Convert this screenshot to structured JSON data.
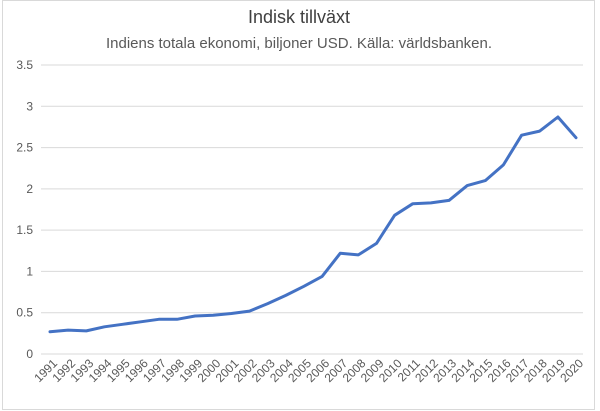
{
  "window": {
    "background_color": "#ffffff",
    "border_color": "#d9d9d9"
  },
  "chart_data": {
    "type": "line",
    "title": "Indisk tillväxt",
    "subtitle": "Indiens totala ekonomi, biljoner USD. Källa: världsbanken.",
    "xlabel": "",
    "ylabel": "",
    "x": [
      1991,
      1992,
      1993,
      1994,
      1995,
      1996,
      1997,
      1998,
      1999,
      2000,
      2001,
      2002,
      2003,
      2004,
      2005,
      2006,
      2007,
      2008,
      2009,
      2010,
      2011,
      2012,
      2013,
      2014,
      2015,
      2016,
      2017,
      2018,
      2019,
      2020
    ],
    "values": [
      0.27,
      0.29,
      0.28,
      0.33,
      0.36,
      0.39,
      0.42,
      0.42,
      0.46,
      0.47,
      0.49,
      0.52,
      0.61,
      0.71,
      0.82,
      0.94,
      1.22,
      1.2,
      1.34,
      1.68,
      1.82,
      1.83,
      1.86,
      2.04,
      2.1,
      2.29,
      2.65,
      2.7,
      2.87,
      2.62
    ],
    "ylim": [
      0,
      3.5
    ],
    "y_ticks": [
      0,
      0.5,
      1,
      1.5,
      2,
      2.5,
      3,
      3.5
    ],
    "y_tick_labels": [
      "0",
      "0.5",
      "1",
      "1.5",
      "2",
      "2.5",
      "3",
      "3.5"
    ],
    "grid": true,
    "legend": false,
    "line_color": "#4472c4",
    "gridline_color": "#d9d9d9",
    "axis_label_color": "#595959",
    "title_color": "#404040",
    "subtitle_color": "#595959"
  }
}
